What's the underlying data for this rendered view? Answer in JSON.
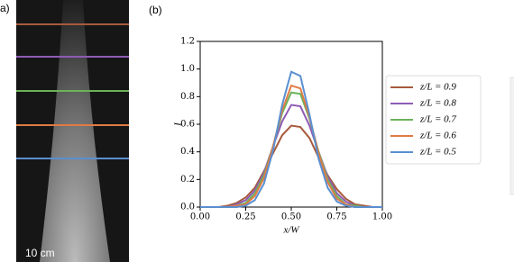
{
  "panel_labels": [
    "a)",
    "(b)"
  ],
  "scale_label": "10 cm",
  "chart_data": {
    "type": "line",
    "x_label": "x/W",
    "y_label": "I",
    "x": [
      0,
      0.05,
      0.1,
      0.15,
      0.2,
      0.25,
      0.3,
      0.35,
      0.4,
      0.45,
      0.5,
      0.55,
      0.6,
      0.65,
      0.7,
      0.75,
      0.8,
      0.85,
      0.9,
      0.95,
      1.0
    ],
    "xlim": [
      0,
      1
    ],
    "ylim": [
      0,
      1.2
    ],
    "xticks": [
      {
        "value": 0,
        "label": "0.00"
      },
      {
        "value": 0.25,
        "label": "0.25"
      },
      {
        "value": 0.5,
        "label": "0.50"
      },
      {
        "value": 0.75,
        "label": "0.75"
      },
      {
        "value": 1,
        "label": "1.00"
      }
    ],
    "yticks": [
      {
        "value": 0,
        "label": "0.0"
      },
      {
        "value": 0.2,
        "label": "0.2"
      },
      {
        "value": 0.4,
        "label": "0.4"
      },
      {
        "value": 0.6,
        "label": "0.6"
      },
      {
        "value": 0.8,
        "label": "0.8"
      },
      {
        "value": 1,
        "label": "1.0"
      },
      {
        "value": 1.2,
        "label": "1.2"
      }
    ],
    "series": [
      {
        "name": "z/L = 0.9",
        "color": "#a65b3d",
        "values": [
          0,
          0,
          0,
          0.01,
          0.03,
          0.07,
          0.14,
          0.26,
          0.39,
          0.52,
          0.59,
          0.58,
          0.5,
          0.36,
          0.23,
          0.13,
          0.06,
          0.02,
          0.01,
          0,
          0
        ]
      },
      {
        "name": "z/L = 0.8",
        "color": "#8e5bb5",
        "values": [
          0,
          0,
          0,
          0,
          0.02,
          0.05,
          0.12,
          0.25,
          0.44,
          0.62,
          0.74,
          0.73,
          0.59,
          0.4,
          0.22,
          0.1,
          0.04,
          0.01,
          0,
          0,
          0
        ]
      },
      {
        "name": "z/L = 0.7",
        "color": "#6bb35a",
        "values": [
          0,
          0,
          0,
          0,
          0.01,
          0.03,
          0.1,
          0.23,
          0.44,
          0.68,
          0.83,
          0.82,
          0.64,
          0.4,
          0.2,
          0.08,
          0.02,
          0.01,
          0,
          0,
          0
        ]
      },
      {
        "name": "z/L = 0.6",
        "color": "#e07b45",
        "values": [
          0,
          0,
          0,
          0,
          0.01,
          0.02,
          0.08,
          0.21,
          0.44,
          0.7,
          0.88,
          0.86,
          0.65,
          0.39,
          0.18,
          0.06,
          0.02,
          0,
          0,
          0,
          0
        ]
      },
      {
        "name": "z/L = 0.5",
        "color": "#5a8fd0",
        "values": [
          0,
          0,
          0,
          0,
          0,
          0.01,
          0.05,
          0.17,
          0.41,
          0.74,
          0.98,
          0.95,
          0.67,
          0.35,
          0.14,
          0.04,
          0.01,
          0,
          0,
          0,
          0
        ]
      }
    ]
  }
}
